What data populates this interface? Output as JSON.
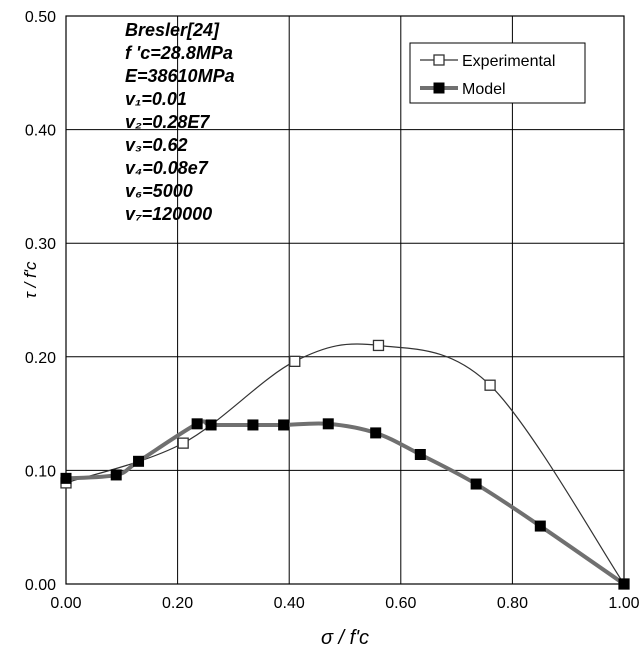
{
  "chart_data": {
    "type": "scatter",
    "title": "",
    "xlabel": "σ / f'c",
    "ylabel": "τ / f'c",
    "xlim": [
      0,
      1
    ],
    "ylim": [
      0,
      0.5
    ],
    "x_ticks": [
      "0.00",
      "0.20",
      "0.40",
      "0.60",
      "0.80",
      "1.00"
    ],
    "y_ticks": [
      "0.00",
      "0.10",
      "0.20",
      "0.30",
      "0.40",
      "0.50"
    ],
    "grid": true,
    "legend_position": "top-right",
    "annotation_lines": [
      "Bresler[24]",
      "f 'c=28.8MPa",
      "E=38610MPa",
      "v₁=0.01",
      "v₂=0.28E7",
      "v₃=0.62",
      "v₄=0.08e7",
      "v₆=5000",
      "v₇=120000"
    ],
    "series": [
      {
        "name": "Experimental",
        "marker": "open-square",
        "color": "#333333",
        "points": [
          [
            0.0,
            0.089
          ],
          [
            0.21,
            0.124
          ],
          [
            0.41,
            0.196
          ],
          [
            0.56,
            0.21
          ],
          [
            0.76,
            0.175
          ],
          [
            1.0,
            0.0
          ]
        ]
      },
      {
        "name": "Model",
        "marker": "filled-square",
        "color": "#707070",
        "points": [
          [
            0.0,
            0.093
          ],
          [
            0.09,
            0.096
          ],
          [
            0.13,
            0.108
          ],
          [
            0.235,
            0.141
          ],
          [
            0.26,
            0.14
          ],
          [
            0.335,
            0.14
          ],
          [
            0.39,
            0.14
          ],
          [
            0.47,
            0.141
          ],
          [
            0.555,
            0.133
          ],
          [
            0.635,
            0.114
          ],
          [
            0.735,
            0.088
          ],
          [
            0.85,
            0.051
          ],
          [
            1.0,
            0.0
          ]
        ]
      }
    ]
  }
}
